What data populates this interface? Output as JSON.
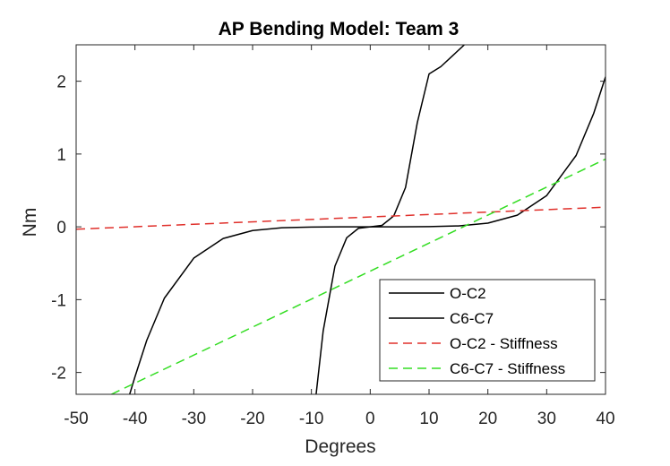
{
  "chart_data": {
    "type": "line",
    "title": "AP Bending Model: Team 3",
    "xlabel": "Degrees",
    "ylabel": "Nm",
    "xlim": [
      -50,
      40
    ],
    "ylim": [
      -2.3,
      2.5
    ],
    "xticks": [
      "-50",
      "-40",
      "-30",
      "-20",
      "-10",
      "0",
      "10",
      "20",
      "30",
      "40"
    ],
    "yticks": [
      "-2",
      "-1",
      "0",
      "1",
      "2"
    ],
    "grid": false,
    "legend_position": "bottom-right",
    "series": [
      {
        "name": "O-C2",
        "style": "solid",
        "color": "#000000",
        "x": [
          -40.9,
          -40,
          -38,
          -35,
          -30,
          -25,
          -20,
          -15,
          -10,
          -5,
          0,
          5,
          10,
          15,
          20,
          25,
          30,
          35,
          38,
          40
        ],
        "y": [
          -2.3,
          -2.06,
          -1.56,
          -0.98,
          -0.43,
          -0.16,
          -0.051,
          -0.013,
          -0.0025,
          -0.0002,
          0,
          0.0002,
          0.0025,
          0.013,
          0.051,
          0.16,
          0.43,
          0.98,
          1.56,
          2.06
        ]
      },
      {
        "name": "C6-C7",
        "style": "solid",
        "color": "#000000",
        "x": [
          -9.2,
          -8,
          -6,
          -4,
          -2,
          0,
          2,
          4,
          6,
          8,
          10,
          12,
          14,
          16
        ],
        "y": [
          -2.3,
          -1.43,
          -0.54,
          -0.15,
          -0.02,
          0,
          0.02,
          0.15,
          0.54,
          1.43,
          2.1,
          2.2,
          2.35,
          2.5
        ]
      },
      {
        "name": "O-C2 - Stiffness",
        "style": "dashed",
        "color": "#e0302b",
        "x": [
          -50,
          40
        ],
        "y": [
          -0.032,
          0.27
        ]
      },
      {
        "name": "C6-C7 - Stiffness",
        "style": "dashed",
        "color": "#33dd22",
        "x": [
          -44,
          40
        ],
        "y": [
          -2.3,
          0.93
        ]
      }
    ]
  }
}
